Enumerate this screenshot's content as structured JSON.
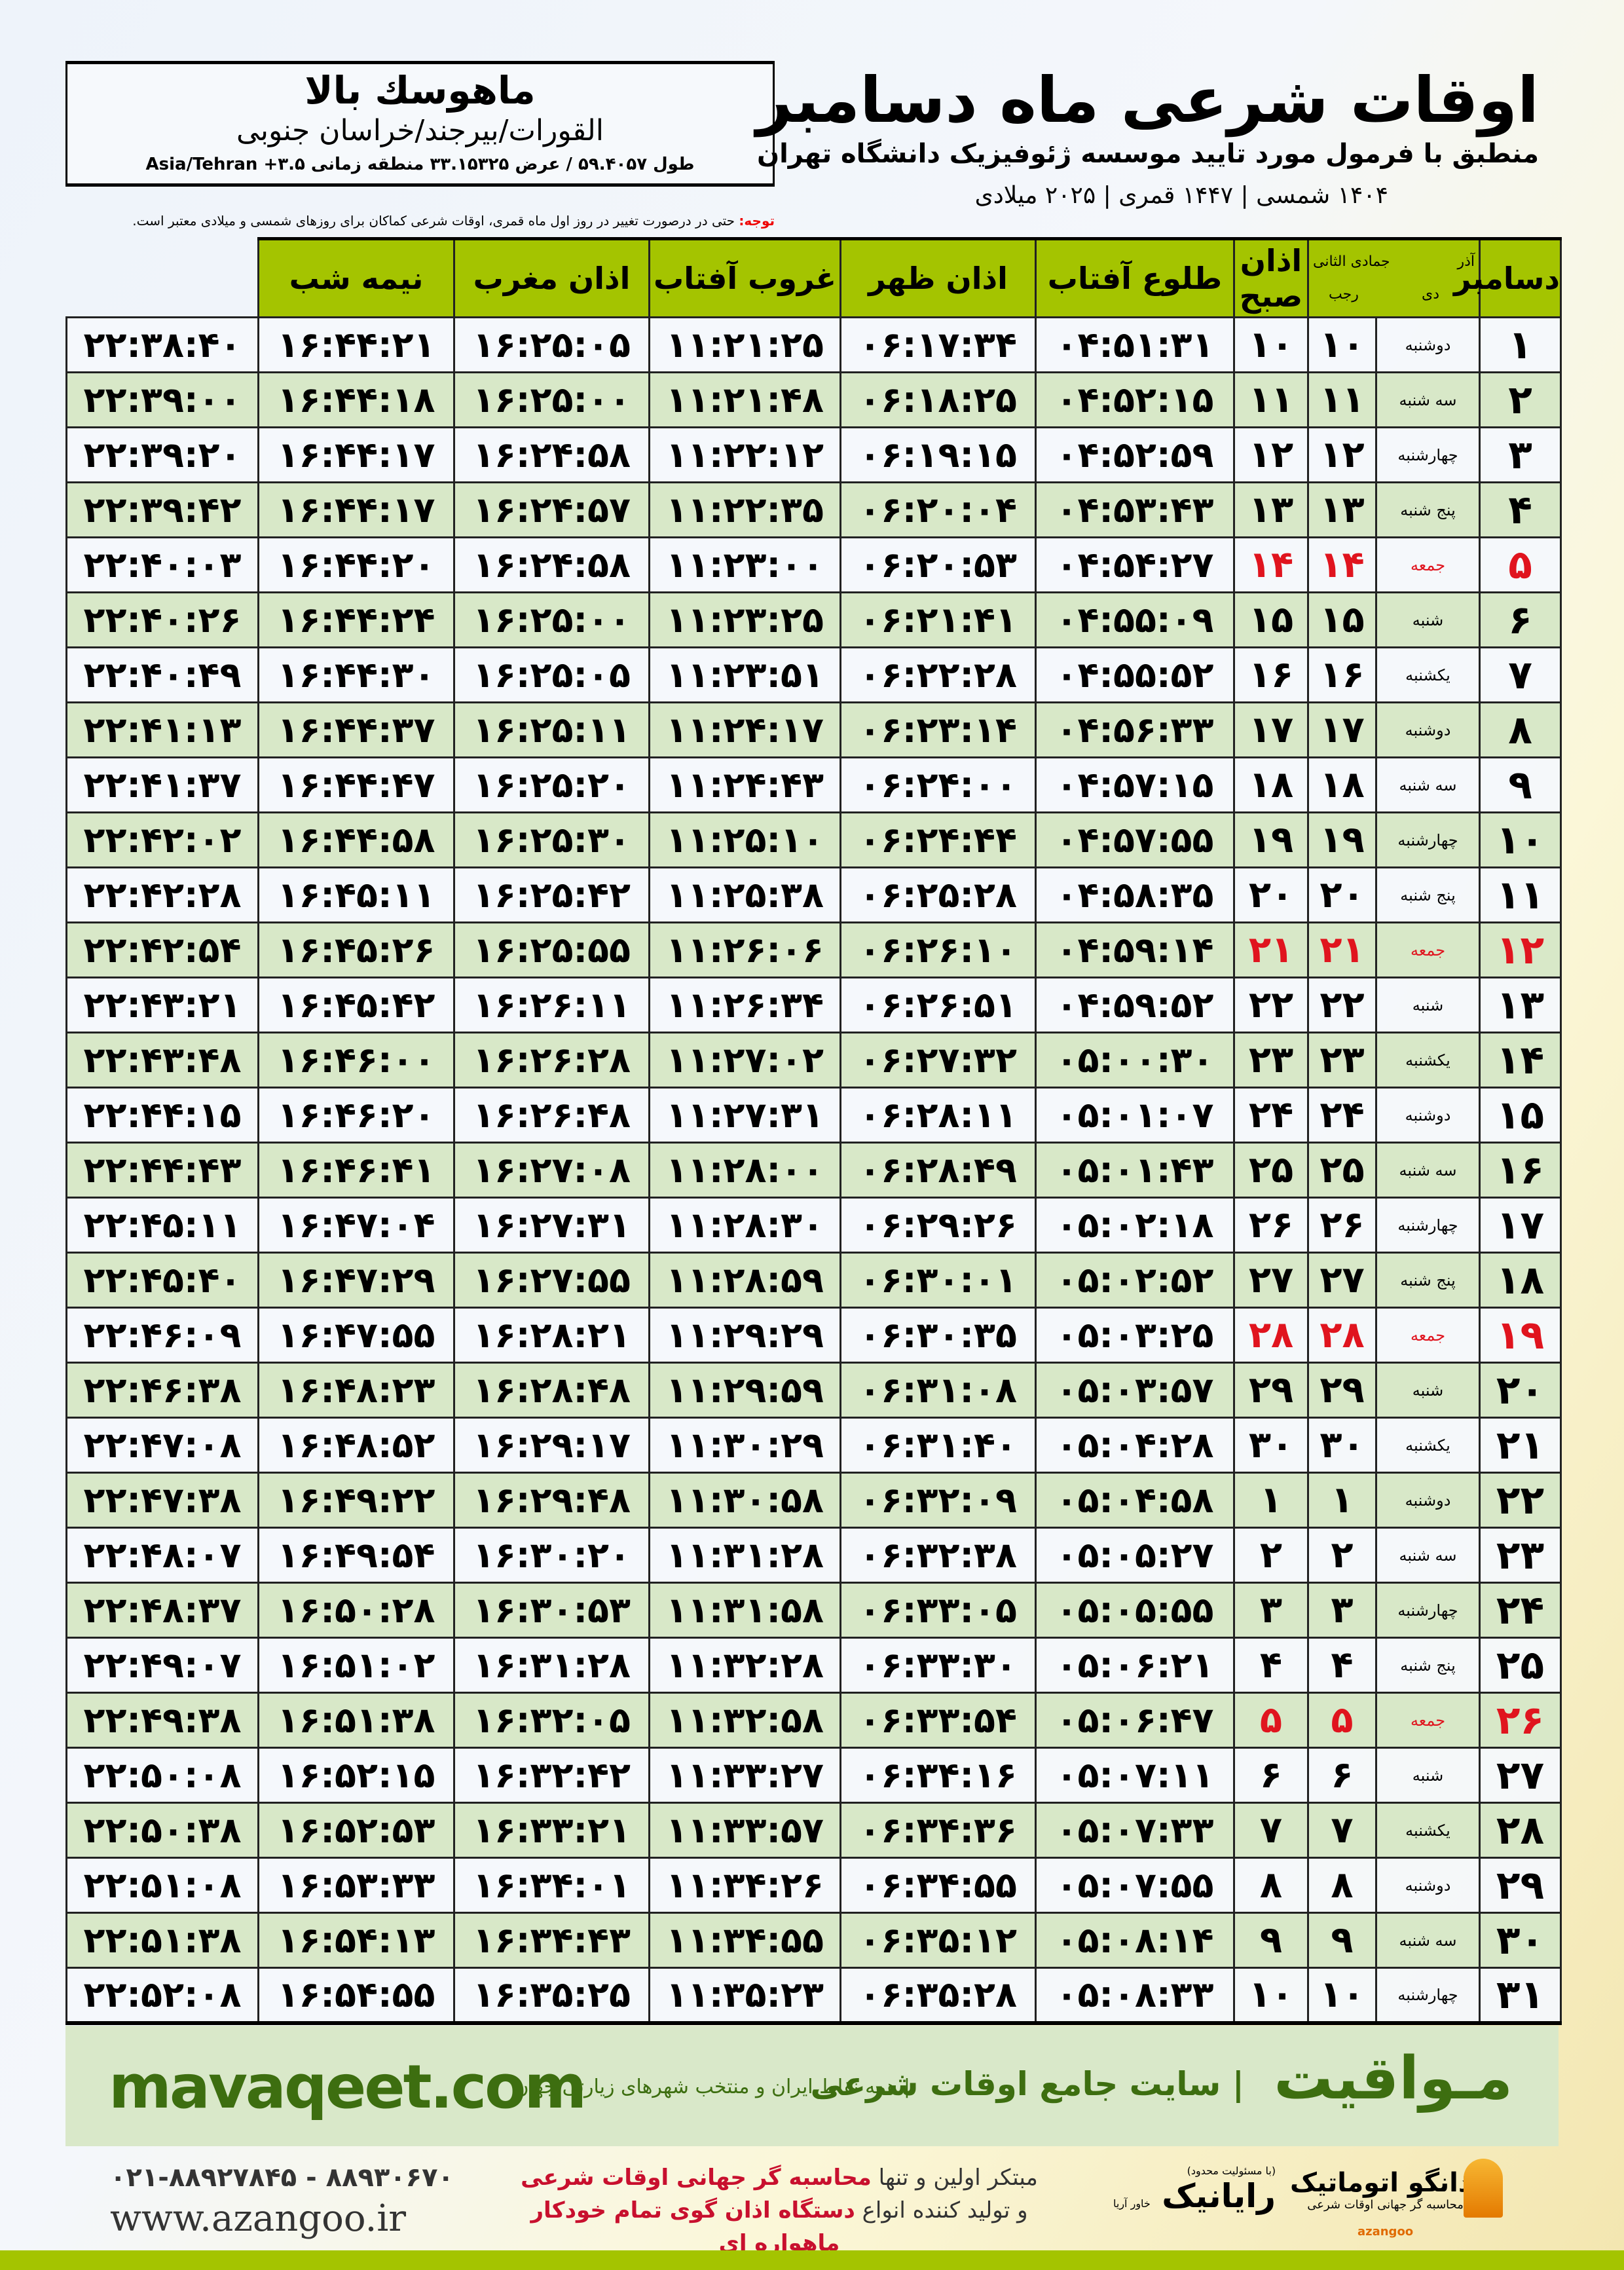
{
  "location": {
    "name": "ماهوسك بالا",
    "path": "القورات/بیرجند/خراسان جنوبی",
    "coords": "طول ۵۹.۴۰۵۷ / عرض ۳۳.۱۵۳۲۵ منطقه زمانی ۳.۵+ Asia/Tehran"
  },
  "header": {
    "title": "اوقات شرعی ماه دسامبر",
    "subtitle": "منطبق با فرمول مورد تایید موسسه ژئوفیزیک دانشگاه تهران",
    "dates": "۱۴۰۴ شمسی | ۱۴۴۷ قمری | ۲۰۲۵ میلادی",
    "note_label": "توجه:",
    "note": " حتی در درصورت تغییر در روز اول ماه قمری، اوقات شرعی کماکان برای روزهای شمسی و میلادی معتبر است."
  },
  "table": {
    "headers": {
      "month": "دسامبر",
      "shamsi_top": "آذر",
      "shamsi_bottom": "دی",
      "hijri_top": "جمادی الثانی",
      "hijri_bottom": "رجب",
      "fajr": "اذان صبح",
      "sunrise": "طلوع آفتاب",
      "dhuhr": "اذان ظهر",
      "sunset": "غروب آفتاب",
      "maghrib": "اذان مغرب",
      "midnight": "نیمه شب"
    },
    "friday_color": "#e0141e",
    "rows": [
      {
        "day": "۱",
        "weekday": "دوشنبه",
        "shamsi": "۱۰",
        "hijri": "۱۰",
        "fajr": "۰۴:۵۱:۳۱",
        "sunrise": "۰۶:۱۷:۳۴",
        "dhuhr": "۱۱:۲۱:۲۵",
        "sunset": "۱۶:۲۵:۰۵",
        "maghrib": "۱۶:۴۴:۲۱",
        "midnight": "۲۲:۳۸:۴۰"
      },
      {
        "day": "۲",
        "weekday": "سه شنبه",
        "shamsi": "۱۱",
        "hijri": "۱۱",
        "fajr": "۰۴:۵۲:۱۵",
        "sunrise": "۰۶:۱۸:۲۵",
        "dhuhr": "۱۱:۲۱:۴۸",
        "sunset": "۱۶:۲۵:۰۰",
        "maghrib": "۱۶:۴۴:۱۸",
        "midnight": "۲۲:۳۹:۰۰"
      },
      {
        "day": "۳",
        "weekday": "چهارشنبه",
        "shamsi": "۱۲",
        "hijri": "۱۲",
        "fajr": "۰۴:۵۲:۵۹",
        "sunrise": "۰۶:۱۹:۱۵",
        "dhuhr": "۱۱:۲۲:۱۲",
        "sunset": "۱۶:۲۴:۵۸",
        "maghrib": "۱۶:۴۴:۱۷",
        "midnight": "۲۲:۳۹:۲۰"
      },
      {
        "day": "۴",
        "weekday": "پنج شنبه",
        "shamsi": "۱۳",
        "hijri": "۱۳",
        "fajr": "۰۴:۵۳:۴۳",
        "sunrise": "۰۶:۲۰:۰۴",
        "dhuhr": "۱۱:۲۲:۳۵",
        "sunset": "۱۶:۲۴:۵۷",
        "maghrib": "۱۶:۴۴:۱۷",
        "midnight": "۲۲:۳۹:۴۲"
      },
      {
        "day": "۵",
        "weekday": "جمعه",
        "shamsi": "۱۴",
        "hijri": "۱۴",
        "fajr": "۰۴:۵۴:۲۷",
        "sunrise": "۰۶:۲۰:۵۳",
        "dhuhr": "۱۱:۲۳:۰۰",
        "sunset": "۱۶:۲۴:۵۸",
        "maghrib": "۱۶:۴۴:۲۰",
        "midnight": "۲۲:۴۰:۰۳",
        "friday": true
      },
      {
        "day": "۶",
        "weekday": "شنبه",
        "shamsi": "۱۵",
        "hijri": "۱۵",
        "fajr": "۰۴:۵۵:۰۹",
        "sunrise": "۰۶:۲۱:۴۱",
        "dhuhr": "۱۱:۲۳:۲۵",
        "sunset": "۱۶:۲۵:۰۰",
        "maghrib": "۱۶:۴۴:۲۴",
        "midnight": "۲۲:۴۰:۲۶"
      },
      {
        "day": "۷",
        "weekday": "یکشنبه",
        "shamsi": "۱۶",
        "hijri": "۱۶",
        "fajr": "۰۴:۵۵:۵۲",
        "sunrise": "۰۶:۲۲:۲۸",
        "dhuhr": "۱۱:۲۳:۵۱",
        "sunset": "۱۶:۲۵:۰۵",
        "maghrib": "۱۶:۴۴:۳۰",
        "midnight": "۲۲:۴۰:۴۹"
      },
      {
        "day": "۸",
        "weekday": "دوشنبه",
        "shamsi": "۱۷",
        "hijri": "۱۷",
        "fajr": "۰۴:۵۶:۳۳",
        "sunrise": "۰۶:۲۳:۱۴",
        "dhuhr": "۱۱:۲۴:۱۷",
        "sunset": "۱۶:۲۵:۱۱",
        "maghrib": "۱۶:۴۴:۳۷",
        "midnight": "۲۲:۴۱:۱۳"
      },
      {
        "day": "۹",
        "weekday": "سه شنبه",
        "shamsi": "۱۸",
        "hijri": "۱۸",
        "fajr": "۰۴:۵۷:۱۵",
        "sunrise": "۰۶:۲۴:۰۰",
        "dhuhr": "۱۱:۲۴:۴۳",
        "sunset": "۱۶:۲۵:۲۰",
        "maghrib": "۱۶:۴۴:۴۷",
        "midnight": "۲۲:۴۱:۳۷"
      },
      {
        "day": "۱۰",
        "weekday": "چهارشنبه",
        "shamsi": "۱۹",
        "hijri": "۱۹",
        "fajr": "۰۴:۵۷:۵۵",
        "sunrise": "۰۶:۲۴:۴۴",
        "dhuhr": "۱۱:۲۵:۱۰",
        "sunset": "۱۶:۲۵:۳۰",
        "maghrib": "۱۶:۴۴:۵۸",
        "midnight": "۲۲:۴۲:۰۲"
      },
      {
        "day": "۱۱",
        "weekday": "پنج شنبه",
        "shamsi": "۲۰",
        "hijri": "۲۰",
        "fajr": "۰۴:۵۸:۳۵",
        "sunrise": "۰۶:۲۵:۲۸",
        "dhuhr": "۱۱:۲۵:۳۸",
        "sunset": "۱۶:۲۵:۴۲",
        "maghrib": "۱۶:۴۵:۱۱",
        "midnight": "۲۲:۴۲:۲۸"
      },
      {
        "day": "۱۲",
        "weekday": "جمعه",
        "shamsi": "۲۱",
        "hijri": "۲۱",
        "fajr": "۰۴:۵۹:۱۴",
        "sunrise": "۰۶:۲۶:۱۰",
        "dhuhr": "۱۱:۲۶:۰۶",
        "sunset": "۱۶:۲۵:۵۵",
        "maghrib": "۱۶:۴۵:۲۶",
        "midnight": "۲۲:۴۲:۵۴",
        "friday": true
      },
      {
        "day": "۱۳",
        "weekday": "شنبه",
        "shamsi": "۲۲",
        "hijri": "۲۲",
        "fajr": "۰۴:۵۹:۵۲",
        "sunrise": "۰۶:۲۶:۵۱",
        "dhuhr": "۱۱:۲۶:۳۴",
        "sunset": "۱۶:۲۶:۱۱",
        "maghrib": "۱۶:۴۵:۴۲",
        "midnight": "۲۲:۴۳:۲۱"
      },
      {
        "day": "۱۴",
        "weekday": "یکشنبه",
        "shamsi": "۲۳",
        "hijri": "۲۳",
        "fajr": "۰۵:۰۰:۳۰",
        "sunrise": "۰۶:۲۷:۳۲",
        "dhuhr": "۱۱:۲۷:۰۲",
        "sunset": "۱۶:۲۶:۲۸",
        "maghrib": "۱۶:۴۶:۰۰",
        "midnight": "۲۲:۴۳:۴۸"
      },
      {
        "day": "۱۵",
        "weekday": "دوشنبه",
        "shamsi": "۲۴",
        "hijri": "۲۴",
        "fajr": "۰۵:۰۱:۰۷",
        "sunrise": "۰۶:۲۸:۱۱",
        "dhuhr": "۱۱:۲۷:۳۱",
        "sunset": "۱۶:۲۶:۴۸",
        "maghrib": "۱۶:۴۶:۲۰",
        "midnight": "۲۲:۴۴:۱۵"
      },
      {
        "day": "۱۶",
        "weekday": "سه شنبه",
        "shamsi": "۲۵",
        "hijri": "۲۵",
        "fajr": "۰۵:۰۱:۴۳",
        "sunrise": "۰۶:۲۸:۴۹",
        "dhuhr": "۱۱:۲۸:۰۰",
        "sunset": "۱۶:۲۷:۰۸",
        "maghrib": "۱۶:۴۶:۴۱",
        "midnight": "۲۲:۴۴:۴۳"
      },
      {
        "day": "۱۷",
        "weekday": "چهارشنبه",
        "shamsi": "۲۶",
        "hijri": "۲۶",
        "fajr": "۰۵:۰۲:۱۸",
        "sunrise": "۰۶:۲۹:۲۶",
        "dhuhr": "۱۱:۲۸:۳۰",
        "sunset": "۱۶:۲۷:۳۱",
        "maghrib": "۱۶:۴۷:۰۴",
        "midnight": "۲۲:۴۵:۱۱"
      },
      {
        "day": "۱۸",
        "weekday": "پنج شنبه",
        "shamsi": "۲۷",
        "hijri": "۲۷",
        "fajr": "۰۵:۰۲:۵۲",
        "sunrise": "۰۶:۳۰:۰۱",
        "dhuhr": "۱۱:۲۸:۵۹",
        "sunset": "۱۶:۲۷:۵۵",
        "maghrib": "۱۶:۴۷:۲۹",
        "midnight": "۲۲:۴۵:۴۰"
      },
      {
        "day": "۱۹",
        "weekday": "جمعه",
        "shamsi": "۲۸",
        "hijri": "۲۸",
        "fajr": "۰۵:۰۳:۲۵",
        "sunrise": "۰۶:۳۰:۳۵",
        "dhuhr": "۱۱:۲۹:۲۹",
        "sunset": "۱۶:۲۸:۲۱",
        "maghrib": "۱۶:۴۷:۵۵",
        "midnight": "۲۲:۴۶:۰۹",
        "friday": true
      },
      {
        "day": "۲۰",
        "weekday": "شنبه",
        "shamsi": "۲۹",
        "hijri": "۲۹",
        "fajr": "۰۵:۰۳:۵۷",
        "sunrise": "۰۶:۳۱:۰۸",
        "dhuhr": "۱۱:۲۹:۵۹",
        "sunset": "۱۶:۲۸:۴۸",
        "maghrib": "۱۶:۴۸:۲۳",
        "midnight": "۲۲:۴۶:۳۸"
      },
      {
        "day": "۲۱",
        "weekday": "یکشنبه",
        "shamsi": "۳۰",
        "hijri": "۳۰",
        "fajr": "۰۵:۰۴:۲۸",
        "sunrise": "۰۶:۳۱:۴۰",
        "dhuhr": "۱۱:۳۰:۲۹",
        "sunset": "۱۶:۲۹:۱۷",
        "maghrib": "۱۶:۴۸:۵۲",
        "midnight": "۲۲:۴۷:۰۸"
      },
      {
        "day": "۲۲",
        "weekday": "دوشنبه",
        "shamsi": "۱",
        "hijri": "۱",
        "fajr": "۰۵:۰۴:۵۸",
        "sunrise": "۰۶:۳۲:۰۹",
        "dhuhr": "۱۱:۳۰:۵۸",
        "sunset": "۱۶:۲۹:۴۸",
        "maghrib": "۱۶:۴۹:۲۲",
        "midnight": "۲۲:۴۷:۳۸"
      },
      {
        "day": "۲۳",
        "weekday": "سه شنبه",
        "shamsi": "۲",
        "hijri": "۲",
        "fajr": "۰۵:۰۵:۲۷",
        "sunrise": "۰۶:۳۲:۳۸",
        "dhuhr": "۱۱:۳۱:۲۸",
        "sunset": "۱۶:۳۰:۲۰",
        "maghrib": "۱۶:۴۹:۵۴",
        "midnight": "۲۲:۴۸:۰۷"
      },
      {
        "day": "۲۴",
        "weekday": "چهارشنبه",
        "shamsi": "۳",
        "hijri": "۳",
        "fajr": "۰۵:۰۵:۵۵",
        "sunrise": "۰۶:۳۳:۰۵",
        "dhuhr": "۱۱:۳۱:۵۸",
        "sunset": "۱۶:۳۰:۵۳",
        "maghrib": "۱۶:۵۰:۲۸",
        "midnight": "۲۲:۴۸:۳۷"
      },
      {
        "day": "۲۵",
        "weekday": "پنج شنبه",
        "shamsi": "۴",
        "hijri": "۴",
        "fajr": "۰۵:۰۶:۲۱",
        "sunrise": "۰۶:۳۳:۳۰",
        "dhuhr": "۱۱:۳۲:۲۸",
        "sunset": "۱۶:۳۱:۲۸",
        "maghrib": "۱۶:۵۱:۰۲",
        "midnight": "۲۲:۴۹:۰۷"
      },
      {
        "day": "۲۶",
        "weekday": "جمعه",
        "shamsi": "۵",
        "hijri": "۵",
        "fajr": "۰۵:۰۶:۴۷",
        "sunrise": "۰۶:۳۳:۵۴",
        "dhuhr": "۱۱:۳۲:۵۸",
        "sunset": "۱۶:۳۲:۰۵",
        "maghrib": "۱۶:۵۱:۳۸",
        "midnight": "۲۲:۴۹:۳۸",
        "friday": true
      },
      {
        "day": "۲۷",
        "weekday": "شنبه",
        "shamsi": "۶",
        "hijri": "۶",
        "fajr": "۰۵:۰۷:۱۱",
        "sunrise": "۰۶:۳۴:۱۶",
        "dhuhr": "۱۱:۳۳:۲۷",
        "sunset": "۱۶:۳۲:۴۲",
        "maghrib": "۱۶:۵۲:۱۵",
        "midnight": "۲۲:۵۰:۰۸"
      },
      {
        "day": "۲۸",
        "weekday": "یکشنبه",
        "shamsi": "۷",
        "hijri": "۷",
        "fajr": "۰۵:۰۷:۳۳",
        "sunrise": "۰۶:۳۴:۳۶",
        "dhuhr": "۱۱:۳۳:۵۷",
        "sunset": "۱۶:۳۳:۲۱",
        "maghrib": "۱۶:۵۲:۵۳",
        "midnight": "۲۲:۵۰:۳۸"
      },
      {
        "day": "۲۹",
        "weekday": "دوشنبه",
        "shamsi": "۸",
        "hijri": "۸",
        "fajr": "۰۵:۰۷:۵۵",
        "sunrise": "۰۶:۳۴:۵۵",
        "dhuhr": "۱۱:۳۴:۲۶",
        "sunset": "۱۶:۳۴:۰۱",
        "maghrib": "۱۶:۵۳:۳۳",
        "midnight": "۲۲:۵۱:۰۸"
      },
      {
        "day": "۳۰",
        "weekday": "سه شنبه",
        "shamsi": "۹",
        "hijri": "۹",
        "fajr": "۰۵:۰۸:۱۴",
        "sunrise": "۰۶:۳۵:۱۲",
        "dhuhr": "۱۱:۳۴:۵۵",
        "sunset": "۱۶:۳۴:۴۳",
        "maghrib": "۱۶:۵۴:۱۳",
        "midnight": "۲۲:۵۱:۳۸"
      },
      {
        "day": "۳۱",
        "weekday": "چهارشنبه",
        "shamsi": "۱۰",
        "hijri": "۱۰",
        "fajr": "۰۵:۰۸:۳۳",
        "sunrise": "۰۶:۳۵:۲۸",
        "dhuhr": "۱۱:۳۵:۲۳",
        "sunset": "۱۶:۳۵:۲۵",
        "maghrib": "۱۶:۵۴:۵۵",
        "midnight": "۲۲:۵۲:۰۸"
      }
    ]
  },
  "banner": {
    "brand": "مـواقیت",
    "tagline": "| سایت جامع اوقات شرعی",
    "tagline2": "| همه نقاط ایران و منتخب شهرهای زیارتی جهان",
    "url": "mavaqeet.com",
    "color": "#3d6e10",
    "background": "#d9e8c9"
  },
  "footer": {
    "phone": "۰۲۱-۸۸۹۲۷۸۴۵ - ۸۸۹۳۰۶۷۰",
    "website": "www.azangoo.ir",
    "line1_a": "مبتکر اولین و تنها ",
    "line1_b": "محاسبه گر جهانی اوقات شرعی",
    "line2_a": "و تولید کننده انواع ",
    "line2_b": "دستگاه اذان گوی تمام خودکار ماهواره ای",
    "logo_rayanik": "رایانیک",
    "logo_rayanik_sub": "خاور آریا",
    "logo_rayanik_top": "(با مسئولیت محدود)",
    "logo_azangoo": "اذانگو اتوماتیک",
    "logo_azangoo_sub": "محاسبه گر جهانی اوقات شرعی",
    "logo_azangoo_latin": "azangoo"
  },
  "colors": {
    "header_green": "#a4c400",
    "row_alt": "#d8e8c8",
    "highlight_red": "#e0141e"
  }
}
